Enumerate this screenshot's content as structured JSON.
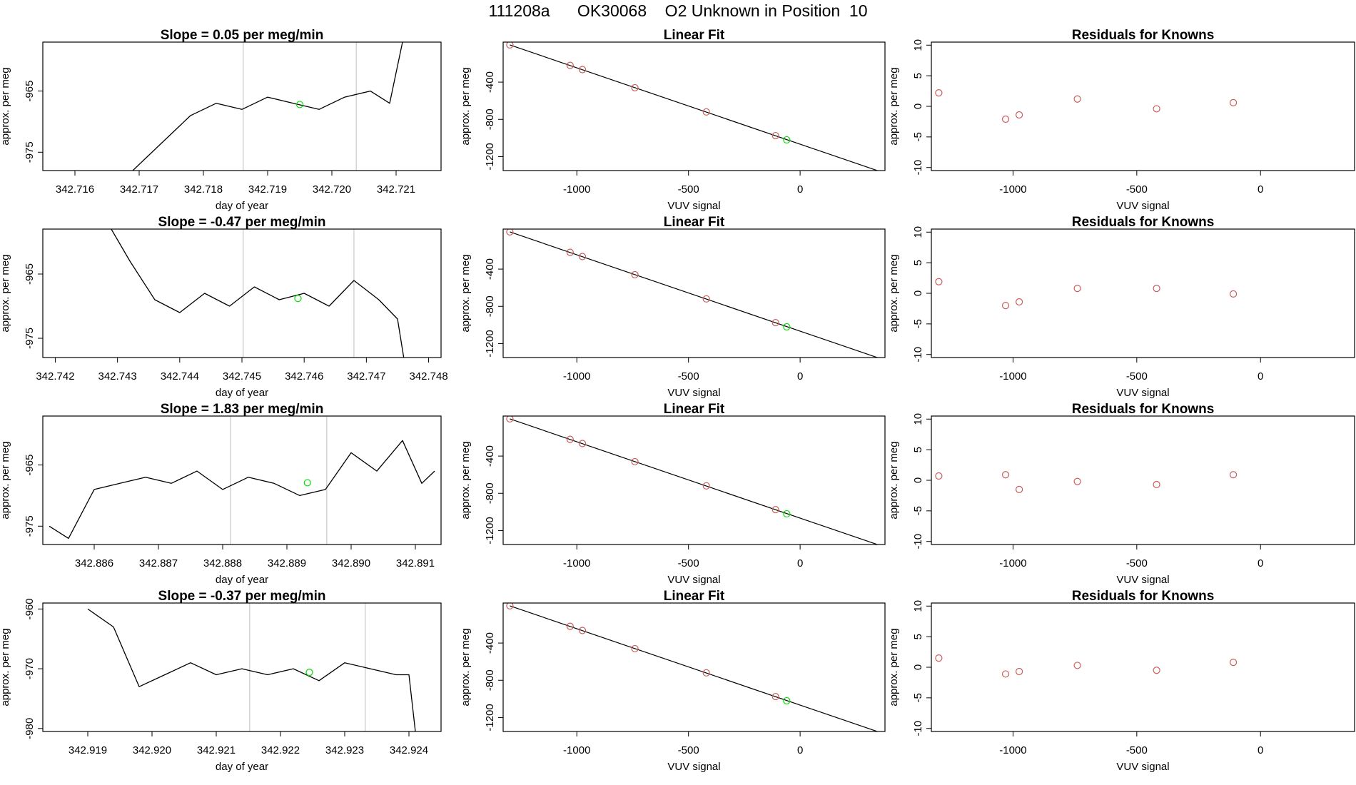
{
  "page_title": "111208a      OK30068    O2 Unknown in Position  10",
  "colors": {
    "data_line": "#000000",
    "known_points": "#cd5c5c",
    "unknown_point": "#00e000",
    "marker_lines": "#c8c8c8"
  },
  "chart_data": [
    {
      "type": "line",
      "title": "Slope =  0.05  per meg/min",
      "xlabel": "day of year",
      "ylabel": "approx. per meg",
      "xticks": [
        "342.716",
        "342.717",
        "342.718",
        "342.719",
        "342.720",
        "342.721"
      ],
      "yticks": [
        "-965",
        "-975"
      ],
      "xlim": [
        342.7155,
        342.7217
      ],
      "ylim": [
        -978,
        -957
      ],
      "vertical_markers": [
        342.71862,
        342.72038
      ],
      "unknown_point": [
        342.7195,
        -967.2
      ],
      "series": [
        {
          "x": [
            342.7169,
            342.7174,
            342.7178,
            342.7182,
            342.7186,
            342.719,
            342.7194,
            342.7198,
            342.7202,
            342.7206,
            342.7209,
            342.7211
          ],
          "values": [
            -978,
            -973,
            -969,
            -967,
            -968,
            -966,
            -967,
            -968,
            -966,
            -965,
            -967,
            -957
          ]
        }
      ]
    },
    {
      "type": "scatter",
      "title": "Linear Fit",
      "xlabel": "VUV signal",
      "ylabel": "approx. per meg",
      "xticks": [
        "-1000",
        "-500",
        "0"
      ],
      "yticks": [
        "-400",
        "-800",
        "-1200"
      ],
      "xlim": [
        -1330,
        380
      ],
      "ylim": [
        -1350,
        30
      ],
      "fit_line": [
        [
          -1300,
          0
        ],
        [
          370,
          -1370
        ]
      ],
      "known_points": {
        "x": [
          -1300,
          -1030,
          -975,
          -740,
          -420,
          -110
        ],
        "y": [
          0,
          -220,
          -265,
          -460,
          -720,
          -975
        ]
      },
      "unknown_point": [
        -60,
        -1020
      ]
    },
    {
      "type": "scatter",
      "title": "Residuals for Knowns",
      "xlabel": "VUV signal",
      "ylabel": "approx. per meg",
      "xticks": [
        "-1000",
        "-500",
        "0"
      ],
      "yticks": [
        "10",
        "5",
        "0",
        "-5",
        "-10"
      ],
      "xlim": [
        -1330,
        380
      ],
      "ylim": [
        -10.5,
        10.5
      ],
      "series": [
        {
          "x": [
            -1300,
            -1030,
            -975,
            -740,
            -420,
            -110
          ],
          "values": [
            2.2,
            -2.1,
            -1.4,
            1.2,
            -0.4,
            0.6
          ]
        }
      ]
    },
    {
      "type": "line",
      "title": "Slope =  -0.47  per meg/min",
      "xlabel": "day of year",
      "ylabel": "approx. per meg",
      "xticks": [
        "342.742",
        "342.743",
        "342.744",
        "342.745",
        "342.746",
        "342.747",
        "342.748"
      ],
      "yticks": [
        "-965",
        "-975"
      ],
      "xlim": [
        342.7418,
        342.7482
      ],
      "ylim": [
        -978,
        -958
      ],
      "vertical_markers": [
        342.74502,
        342.7468
      ],
      "unknown_point": [
        342.7459,
        -968.8
      ],
      "series": [
        {
          "x": [
            342.7429,
            342.7432,
            342.7436,
            342.744,
            342.7444,
            342.7448,
            342.7452,
            342.7456,
            342.746,
            342.7464,
            342.7468,
            342.7472,
            342.7475,
            342.7476
          ],
          "values": [
            -958,
            -963,
            -969,
            -971,
            -968,
            -970,
            -967,
            -969,
            -968,
            -970,
            -966,
            -969,
            -972,
            -978
          ]
        }
      ]
    },
    {
      "type": "scatter",
      "title": "Linear Fit",
      "xlabel": "VUV signal",
      "ylabel": "approx. per meg",
      "xticks": [
        "-1000",
        "-500",
        "0"
      ],
      "yticks": [
        "-400",
        "-800",
        "-1200"
      ],
      "xlim": [
        -1330,
        380
      ],
      "ylim": [
        -1350,
        30
      ],
      "fit_line": [
        [
          -1300,
          0
        ],
        [
          370,
          -1370
        ]
      ],
      "known_points": {
        "x": [
          -1300,
          -1030,
          -975,
          -740,
          -420,
          -110
        ],
        "y": [
          0,
          -220,
          -265,
          -460,
          -720,
          -975
        ]
      },
      "unknown_point": [
        -60,
        -1020
      ]
    },
    {
      "type": "scatter",
      "title": "Residuals for Knowns",
      "xlabel": "VUV signal",
      "ylabel": "approx. per meg",
      "xticks": [
        "-1000",
        "-500",
        "0"
      ],
      "yticks": [
        "10",
        "5",
        "0",
        "-5",
        "-10"
      ],
      "xlim": [
        -1330,
        380
      ],
      "ylim": [
        -10.5,
        10.5
      ],
      "series": [
        {
          "x": [
            -1300,
            -1030,
            -975,
            -740,
            -420,
            -110
          ],
          "values": [
            1.9,
            -2.0,
            -1.4,
            0.8,
            0.8,
            -0.1
          ]
        }
      ]
    },
    {
      "type": "line",
      "title": "Slope =  1.83  per meg/min",
      "xlabel": "day of year",
      "ylabel": "approx. per meg",
      "xticks": [
        "342.886",
        "342.887",
        "342.888",
        "342.889",
        "342.890",
        "342.891"
      ],
      "yticks": [
        "-965",
        "-975"
      ],
      "xlim": [
        342.8852,
        342.8914
      ],
      "ylim": [
        -978,
        -957
      ],
      "vertical_markers": [
        342.88812,
        342.88962
      ],
      "unknown_point": [
        342.88932,
        -967.9
      ],
      "series": [
        {
          "x": [
            342.8853,
            342.8856,
            342.886,
            342.8864,
            342.8868,
            342.8872,
            342.8876,
            342.888,
            342.8884,
            342.8888,
            342.8892,
            342.8896,
            342.89,
            342.8904,
            342.8908,
            342.8911,
            342.8913
          ],
          "values": [
            -975,
            -977,
            -969,
            -968,
            -967,
            -968,
            -966,
            -969,
            -967,
            -968,
            -970,
            -969,
            -963,
            -966,
            -961,
            -968,
            -966
          ]
        }
      ]
    },
    {
      "type": "scatter",
      "title": "Linear Fit",
      "xlabel": "VUV signal",
      "ylabel": "approx. per meg",
      "xticks": [
        "-1000",
        "-500",
        "0"
      ],
      "yticks": [
        "-400",
        "-800",
        "-1200"
      ],
      "xlim": [
        -1330,
        380
      ],
      "ylim": [
        -1350,
        30
      ],
      "fit_line": [
        [
          -1300,
          0
        ],
        [
          370,
          -1370
        ]
      ],
      "known_points": {
        "x": [
          -1300,
          -1030,
          -975,
          -740,
          -420,
          -110
        ],
        "y": [
          0,
          -220,
          -265,
          -460,
          -720,
          -975
        ]
      },
      "unknown_point": [
        -60,
        -1020
      ]
    },
    {
      "type": "scatter",
      "title": "Residuals for Knowns",
      "xlabel": "VUV signal",
      "ylabel": "approx. per meg",
      "xticks": [
        "-1000",
        "-500",
        "0"
      ],
      "yticks": [
        "10",
        "5",
        "0",
        "-5",
        "-10"
      ],
      "xlim": [
        -1330,
        380
      ],
      "ylim": [
        -10.5,
        10.5
      ],
      "series": [
        {
          "x": [
            -1300,
            -1030,
            -975,
            -740,
            -420,
            -110
          ],
          "values": [
            0.7,
            0.9,
            -1.5,
            -0.2,
            -0.7,
            0.9
          ]
        }
      ]
    },
    {
      "type": "line",
      "title": "Slope =  -0.37  per meg/min",
      "xlabel": "day of year",
      "ylabel": "approx. per meg",
      "xticks": [
        "342.919",
        "342.920",
        "342.921",
        "342.922",
        "342.923",
        "342.924"
      ],
      "yticks": [
        "-960",
        "-970",
        "-980"
      ],
      "xlim": [
        342.9183,
        342.9245
      ],
      "ylim": [
        -980.5,
        -959
      ],
      "vertical_markers": [
        342.92152,
        342.92332
      ],
      "unknown_point": [
        342.92245,
        -970.6
      ],
      "series": [
        {
          "x": [
            342.919,
            342.9194,
            342.9198,
            342.9202,
            342.9206,
            342.921,
            342.9214,
            342.9218,
            342.9222,
            342.9226,
            342.923,
            342.9234,
            342.9238,
            342.924,
            342.9241
          ],
          "values": [
            -960,
            -963,
            -973,
            -971,
            -969,
            -971,
            -970,
            -971,
            -970,
            -972,
            -969,
            -970,
            -971,
            -971,
            -980.5
          ]
        }
      ]
    },
    {
      "type": "scatter",
      "title": "Linear Fit",
      "xlabel": "VUV signal",
      "ylabel": "approx. per meg",
      "xticks": [
        "-1000",
        "-500",
        "0"
      ],
      "yticks": [
        "-400",
        "-800",
        "-1200"
      ],
      "xlim": [
        -1330,
        380
      ],
      "ylim": [
        -1350,
        30
      ],
      "fit_line": [
        [
          -1300,
          0
        ],
        [
          370,
          -1370
        ]
      ],
      "known_points": {
        "x": [
          -1300,
          -1030,
          -975,
          -740,
          -420,
          -110
        ],
        "y": [
          0,
          -220,
          -265,
          -460,
          -720,
          -975
        ]
      },
      "unknown_point": [
        -60,
        -1020
      ]
    },
    {
      "type": "scatter",
      "title": "Residuals for Knowns",
      "xlabel": "VUV signal",
      "ylabel": "approx. per meg",
      "xticks": [
        "-1000",
        "-500",
        "0"
      ],
      "yticks": [
        "10",
        "5",
        "0",
        "-5",
        "-10"
      ],
      "xlim": [
        -1330,
        380
      ],
      "ylim": [
        -10.5,
        10.5
      ],
      "series": [
        {
          "x": [
            -1300,
            -1030,
            -975,
            -740,
            -420,
            -110
          ],
          "values": [
            1.5,
            -1.1,
            -0.7,
            0.3,
            -0.5,
            0.8
          ]
        }
      ]
    }
  ]
}
